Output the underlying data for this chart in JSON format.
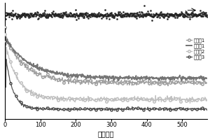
{
  "xlabel": "循环次数",
  "xlim": [
    0,
    570
  ],
  "x_ticks": [
    0,
    100,
    200,
    300,
    400,
    500
  ],
  "legend_labels": [
    "对比例1",
    "实施例1",
    "对比例2",
    "对比例3"
  ],
  "background_color": "#ffffff",
  "scatter_color": "#222222",
  "line_colors": [
    "#999999",
    "#666666",
    "#bbbbbb",
    "#444444"
  ],
  "num_cycles": 570,
  "figsize": [
    3.0,
    2.0
  ],
  "dpi": 100
}
